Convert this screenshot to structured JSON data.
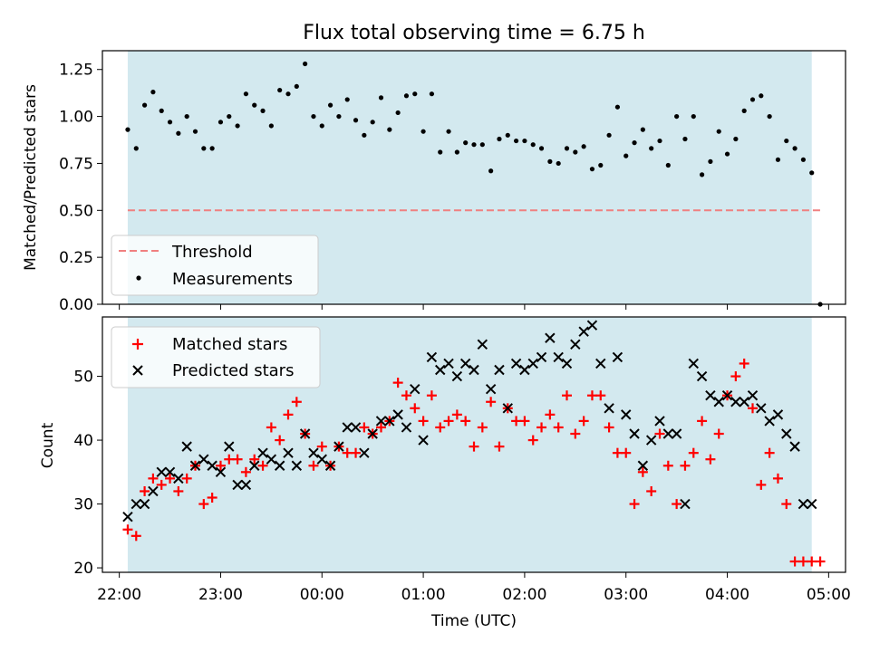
{
  "chart_data": [
    {
      "type": "scatter",
      "title": "Flux total observing time = 6.75 h",
      "xlabel": "",
      "ylabel": "Matched/Predicted stars",
      "x_is_time": true,
      "ylim": [
        0.0,
        1.35
      ],
      "yticks": [
        "0.00",
        "0.25",
        "0.50",
        "0.75",
        "1.00",
        "1.25"
      ],
      "ytick_values": [
        0.0,
        0.25,
        0.5,
        0.75,
        1.0,
        1.25
      ],
      "observing_window": {
        "start": "22:05",
        "end": "04:50",
        "color": "#d3e9ef"
      },
      "threshold": {
        "label": "Threshold",
        "value": 0.5,
        "color": "#f08080",
        "x_start": "22:05",
        "x_end": "04:56"
      },
      "measurements": {
        "label": "Measurements",
        "color": "#000000",
        "x": [
          "22:05",
          "22:10",
          "22:15",
          "22:20",
          "22:25",
          "22:30",
          "22:35",
          "22:40",
          "22:45",
          "22:50",
          "22:55",
          "23:00",
          "23:05",
          "23:10",
          "23:15",
          "23:20",
          "23:25",
          "23:30",
          "23:35",
          "23:40",
          "23:45",
          "23:50",
          "23:55",
          "00:00",
          "00:05",
          "00:10",
          "00:15",
          "00:20",
          "00:25",
          "00:30",
          "00:35",
          "00:40",
          "00:45",
          "00:50",
          "00:55",
          "01:00",
          "01:05",
          "01:10",
          "01:15",
          "01:20",
          "01:25",
          "01:30",
          "01:35",
          "01:40",
          "01:45",
          "01:50",
          "01:55",
          "02:00",
          "02:05",
          "02:10",
          "02:15",
          "02:20",
          "02:25",
          "02:30",
          "02:35",
          "02:40",
          "02:45",
          "02:50",
          "02:55",
          "03:00",
          "03:05",
          "03:10",
          "03:15",
          "03:20",
          "03:25",
          "03:30",
          "03:35",
          "03:40",
          "03:45",
          "03:50",
          "03:55",
          "04:00",
          "04:05",
          "04:10",
          "04:15",
          "04:20",
          "04:25",
          "04:30",
          "04:35",
          "04:40",
          "04:45",
          "04:50",
          "04:55"
        ],
        "y": [
          0.93,
          0.83,
          1.06,
          1.13,
          1.03,
          0.97,
          0.91,
          1.0,
          0.92,
          0.83,
          0.83,
          0.97,
          1.0,
          0.95,
          1.12,
          1.06,
          1.03,
          0.95,
          1.14,
          1.12,
          1.16,
          1.28,
          1.0,
          0.95,
          1.06,
          1.0,
          1.09,
          0.98,
          0.9,
          0.97,
          1.1,
          0.93,
          1.02,
          1.11,
          1.12,
          0.92,
          1.12,
          0.81,
          0.92,
          0.81,
          0.86,
          0.85,
          0.85,
          0.71,
          0.88,
          0.9,
          0.87,
          0.87,
          0.85,
          0.83,
          0.76,
          0.75,
          0.83,
          0.81,
          0.84,
          0.72,
          0.74,
          0.9,
          1.05,
          0.79,
          0.86,
          0.93,
          0.83,
          0.87,
          0.74,
          1.0,
          0.88,
          1.0,
          0.69,
          0.76,
          0.92,
          0.8,
          0.88,
          1.03,
          1.09,
          1.11,
          1.0,
          0.77,
          0.87,
          0.83,
          0.77,
          0.7,
          0.0
        ]
      },
      "legend": {
        "position": "lower left",
        "entries": [
          "Threshold",
          "Measurements"
        ]
      }
    },
    {
      "type": "scatter",
      "title": "",
      "xlabel": "Time (UTC)",
      "ylabel": "Count",
      "x_is_time": true,
      "xlim": [
        "21:50",
        "05:10"
      ],
      "xticks": [
        "22:00",
        "23:00",
        "00:00",
        "01:00",
        "02:00",
        "03:00",
        "04:00",
        "05:00"
      ],
      "ylim": [
        19.3,
        59.3
      ],
      "yticks": [
        "20",
        "30",
        "40",
        "50"
      ],
      "ytick_values": [
        20,
        30,
        40,
        50
      ],
      "observing_window": {
        "start": "22:05",
        "end": "04:50",
        "color": "#d3e9ef"
      },
      "series": [
        {
          "name": "Matched stars",
          "marker": "+",
          "color": "#ff0000",
          "x": [
            "22:05",
            "22:10",
            "22:15",
            "22:20",
            "22:25",
            "22:30",
            "22:35",
            "22:40",
            "22:45",
            "22:50",
            "22:55",
            "23:00",
            "23:05",
            "23:10",
            "23:15",
            "23:20",
            "23:25",
            "23:30",
            "23:35",
            "23:40",
            "23:45",
            "23:50",
            "23:55",
            "00:00",
            "00:05",
            "00:10",
            "00:15",
            "00:20",
            "00:25",
            "00:30",
            "00:35",
            "00:40",
            "00:45",
            "00:50",
            "00:55",
            "01:00",
            "01:05",
            "01:10",
            "01:15",
            "01:20",
            "01:25",
            "01:30",
            "01:35",
            "01:40",
            "01:45",
            "01:50",
            "01:55",
            "02:00",
            "02:05",
            "02:10",
            "02:15",
            "02:20",
            "02:25",
            "02:30",
            "02:35",
            "02:40",
            "02:45",
            "02:50",
            "02:55",
            "03:00",
            "03:05",
            "03:10",
            "03:15",
            "03:20",
            "03:25",
            "03:30",
            "03:35",
            "03:40",
            "03:45",
            "03:50",
            "03:55",
            "04:00",
            "04:05",
            "04:10",
            "04:15",
            "04:20",
            "04:25",
            "04:30",
            "04:35",
            "04:40",
            "04:45",
            "04:50",
            "04:55"
          ],
          "y": [
            26,
            25,
            32,
            34,
            33,
            34,
            32,
            34,
            36,
            30,
            31,
            36,
            37,
            37,
            35,
            37,
            36,
            42,
            40,
            44,
            46,
            41,
            36,
            39,
            36,
            39,
            38,
            38,
            42,
            41,
            42,
            43,
            49,
            47,
            45,
            43,
            47,
            42,
            43,
            44,
            43,
            39,
            42,
            46,
            39,
            45,
            43,
            43,
            40,
            42,
            44,
            42,
            47,
            41,
            43,
            47,
            47,
            42,
            38,
            38,
            30,
            35,
            32,
            41,
            36,
            30,
            36,
            38,
            43,
            37,
            41,
            47,
            50,
            52,
            45,
            33,
            38,
            34,
            30,
            21,
            21,
            21,
            21
          ]
        },
        {
          "name": "Predicted stars",
          "marker": "x",
          "color": "#000000",
          "x": [
            "22:05",
            "22:10",
            "22:15",
            "22:20",
            "22:25",
            "22:30",
            "22:35",
            "22:40",
            "22:45",
            "22:50",
            "22:55",
            "23:00",
            "23:05",
            "23:10",
            "23:15",
            "23:20",
            "23:25",
            "23:30",
            "23:35",
            "23:40",
            "23:45",
            "23:50",
            "23:55",
            "00:00",
            "00:05",
            "00:10",
            "00:15",
            "00:20",
            "00:25",
            "00:30",
            "00:35",
            "00:40",
            "00:45",
            "00:50",
            "00:55",
            "01:00",
            "01:05",
            "01:10",
            "01:15",
            "01:20",
            "01:25",
            "01:30",
            "01:35",
            "01:40",
            "01:45",
            "01:50",
            "01:55",
            "02:00",
            "02:05",
            "02:10",
            "02:15",
            "02:20",
            "02:25",
            "02:30",
            "02:35",
            "02:40",
            "02:45",
            "02:50",
            "02:55",
            "03:00",
            "03:05",
            "03:10",
            "03:15",
            "03:20",
            "03:25",
            "03:30",
            "03:35",
            "03:40",
            "03:45",
            "03:50",
            "03:55",
            "04:00",
            "04:05",
            "04:10",
            "04:15",
            "04:20",
            "04:25",
            "04:30",
            "04:35",
            "04:40",
            "04:45",
            "04:50"
          ],
          "y": [
            28,
            30,
            30,
            32,
            35,
            35,
            34,
            39,
            36,
            37,
            36,
            35,
            39,
            33,
            33,
            36,
            38,
            37,
            36,
            38,
            36,
            41,
            38,
            37,
            36,
            39,
            42,
            42,
            38,
            41,
            43,
            43,
            44,
            42,
            48,
            40,
            53,
            51,
            52,
            50,
            52,
            51,
            55,
            48,
            51,
            45,
            52,
            51,
            52,
            53,
            56,
            53,
            52,
            55,
            57,
            58,
            52,
            45,
            53,
            44,
            41,
            36,
            40,
            43,
            41,
            41,
            30,
            52,
            50,
            47,
            46,
            47,
            46,
            46,
            47,
            45,
            43,
            44,
            41,
            39,
            30,
            30
          ]
        }
      ],
      "legend": {
        "position": "upper left",
        "entries": [
          "Matched stars",
          "Predicted stars"
        ]
      }
    }
  ]
}
